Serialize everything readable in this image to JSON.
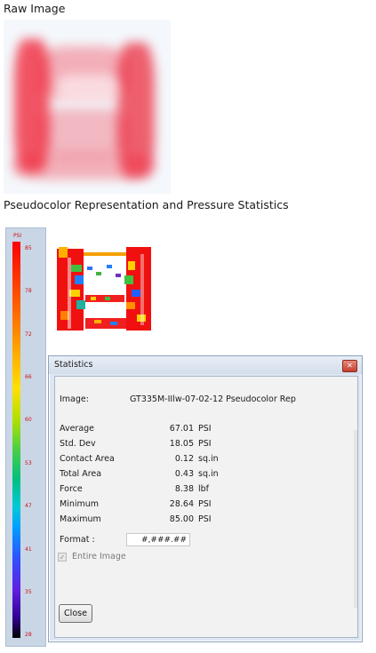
{
  "sections": {
    "raw_title": "Raw Image",
    "pseudo_title": "Pseudocolor Representation and Pressure Statistics"
  },
  "scale": {
    "unit": "PSI",
    "labels": [
      "85",
      "78",
      "72",
      "66",
      "60",
      "53",
      "47",
      "41",
      "35",
      "28"
    ]
  },
  "stats_window": {
    "title": "Statistics",
    "image_label": "Image:",
    "image_value": "GT335M-IIlw-07-02-12 Pseudocolor Rep",
    "rows": [
      {
        "label": "Average",
        "value": "67.01",
        "unit": "PSI"
      },
      {
        "label": "Std. Dev",
        "value": "18.05",
        "unit": "PSI"
      },
      {
        "label": "Contact Area",
        "value": "0.12",
        "unit": "sq.in"
      },
      {
        "label": "Total Area",
        "value": "0.43",
        "unit": "sq.in"
      },
      {
        "label": "Force",
        "value": "8.38",
        "unit": "lbf"
      },
      {
        "label": "Minimum",
        "value": "28.64",
        "unit": "PSI"
      },
      {
        "label": "Maximum",
        "value": "85.00",
        "unit": "PSI"
      }
    ],
    "format_label": "Format :",
    "format_value": "#,###.##",
    "entire_image_label": "Entire Image",
    "entire_image_checked": true,
    "close_label": "Close"
  },
  "colors": {
    "accent_red": "#ff1a1a",
    "scale_label": "#cc1010",
    "window_border": "#8ea3bd"
  }
}
